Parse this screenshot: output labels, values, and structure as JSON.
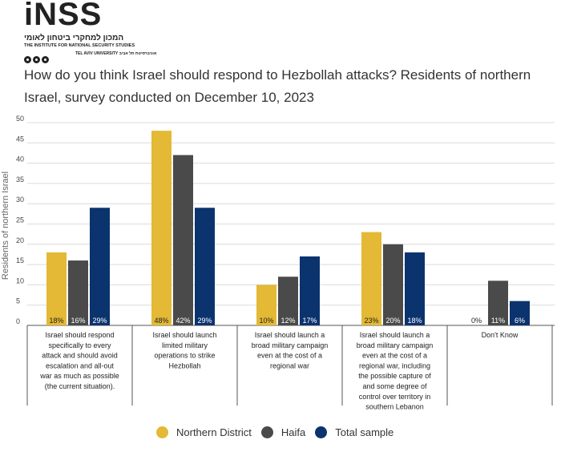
{
  "logo": {
    "main": "iNSS",
    "hebrew": "המכון למחקרי ביטחון לאומי",
    "english": "THE INSTITUTE FOR NATIONAL SECURITY STUDIES",
    "tau": "TEL AVIV UNIVERSITY אוניברסיטת תל אביב"
  },
  "colors": {
    "northern": "#e3b935",
    "haifa": "#4a4a4a",
    "total": "#0b336e"
  },
  "chart_data": {
    "type": "bar",
    "title": "How do you think Israel should respond to Hezbollah attacks? Residents of northern Israel, survey conducted on December 10, 2023",
    "ylabel": "Residents of northern Israel",
    "xlabel": "",
    "ylim": [
      0,
      50
    ],
    "yticks": [
      0,
      5,
      10,
      15,
      20,
      25,
      30,
      35,
      40,
      45,
      50
    ],
    "grid": true,
    "legend_position": "bottom",
    "categories": [
      "Israel should respond specifically to every attack and should avoid escalation and all-out war as much as possible (the current situation).",
      "Israel should launch limited military operations to strike Hezbollah",
      "Israel should launch a broad military campaign even at the cost of a regional war",
      "Israel should launch a broad military campaign even at the cost of a regional war, including the possible capture of and some degree of control over territory in southern Lebanon",
      "Don't Know"
    ],
    "series": [
      {
        "name": "Northern District",
        "values": [
          18,
          48,
          10,
          23,
          0
        ],
        "labels": [
          "18%",
          "48%",
          "10%",
          "23%",
          "0%"
        ]
      },
      {
        "name": "Haifa",
        "values": [
          16,
          42,
          12,
          20,
          11
        ],
        "labels": [
          "16%",
          "42%",
          "12%",
          "20%",
          "11%"
        ]
      },
      {
        "name": "Total sample",
        "values": [
          29,
          29,
          17,
          18,
          6
        ],
        "labels": [
          "29%",
          "29%",
          "17%",
          "18%",
          "6%"
        ]
      }
    ]
  }
}
